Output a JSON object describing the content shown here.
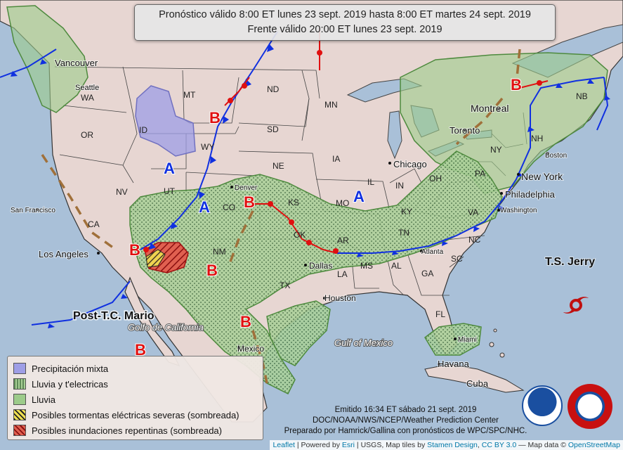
{
  "title": {
    "line1": "Pronóstico válido 8:00 ET lunes 23 sept. 2019 hasta 8:00 ET martes 24 sept. 2019",
    "line2": "Frente válido 20:00 ET lunes 23 sept. 2019"
  },
  "legend": {
    "items": [
      {
        "label": "Precipitación mixta",
        "color": "#9e9ee6"
      },
      {
        "label": "Lluvia y t'electricas",
        "color": "#8dbf7a"
      },
      {
        "label": "Lluvia",
        "color": "#9ccb8a"
      },
      {
        "label": "Posibles tormentas eléctricas severas (sombreada)",
        "color": "#e8d040"
      },
      {
        "label": "Posibles inundaciones repentinas (sombreada)",
        "color": "#e04040"
      }
    ]
  },
  "issued": {
    "line1": "Emitido 16:34 ET sábado 21 sept. 2019",
    "line2": "DOC/NOAA/NWS/NCEP/Weather Prediction Center",
    "line3": "Preparado por Hamrick/Gallina con pronósticos de WPC/SPC/NHC."
  },
  "attribution": {
    "leaflet": "Leaflet",
    "sep1": " | Powered by ",
    "esri": "Esri",
    "sep2": " | USGS, Map tiles by ",
    "stamen": "Stamen Design",
    "sep3": ", ",
    "license": "CC BY 3.0",
    "sep4": " — Map data © ",
    "osm": "OpenStreetMap"
  },
  "map_labels": {
    "states": [
      "WA",
      "OR",
      "ID",
      "MT",
      "WY",
      "NV",
      "UT",
      "CO",
      "CA",
      "ND",
      "SD",
      "NE",
      "KS",
      "OK",
      "TX",
      "NM",
      "MN",
      "IA",
      "MO",
      "AR",
      "LA",
      "IL",
      "IN",
      "OH",
      "KY",
      "TN",
      "MS",
      "AL",
      "GA",
      "SC",
      "NC",
      "VA",
      "PA",
      "NY",
      "FL",
      "NH",
      "NB"
    ],
    "cities": [
      "Vancouver",
      "Seattle",
      "San Francisco",
      "Los Angeles",
      "Denver",
      "Dallas",
      "Houston",
      "Chicago",
      "Atlanta",
      "Philadelphia",
      "Washington",
      "New York",
      "Boston",
      "Toronto",
      "Montreal",
      "Miami",
      "Havana",
      "Mexico",
      "Cuba"
    ],
    "water": [
      "Gulf of Mexico",
      "Golfo de California"
    ],
    "storms": [
      "T.S. Jerry",
      "Post-T.C. Mario"
    ],
    "high": "A",
    "low": "B"
  },
  "colors": {
    "rain": "#9ccb8a",
    "mixed": "#9e9ee6",
    "cold_front": "#1030e0",
    "warm_front": "#e01010",
    "trough": "#a0703a"
  }
}
